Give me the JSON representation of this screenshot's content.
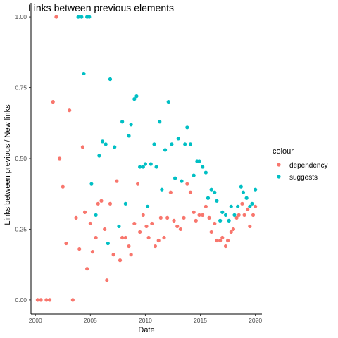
{
  "chart_data": {
    "type": "scatter",
    "title": "Links between previous elements",
    "xlabel": "Date",
    "ylabel": "Links between previous / New links",
    "xlim": [
      1999.6,
      2020.6
    ],
    "ylim": [
      -0.05,
      1.05
    ],
    "x_ticks": [
      2000,
      2005,
      2010,
      2015,
      2020
    ],
    "x_tick_labels": [
      "2000",
      "2005",
      "2010",
      "2015",
      "2020"
    ],
    "y_ticks": [
      0.0,
      0.25,
      0.5,
      0.75,
      1.0
    ],
    "y_tick_labels": [
      "0.00",
      "0.25",
      "0.50",
      "0.75",
      "1.00"
    ],
    "grid": false,
    "legend": {
      "title": "colour",
      "position": "right"
    },
    "series": [
      {
        "name": "dependency",
        "color": "#F8766D",
        "points": [
          [
            2000.2,
            0.0
          ],
          [
            2000.5,
            0.0
          ],
          [
            2001.0,
            0.0
          ],
          [
            2001.3,
            0.0
          ],
          [
            2001.6,
            0.7
          ],
          [
            2001.9,
            1.0
          ],
          [
            2002.2,
            0.5
          ],
          [
            2002.5,
            0.4
          ],
          [
            2002.8,
            0.2
          ],
          [
            2003.1,
            0.67
          ],
          [
            2003.4,
            0.0
          ],
          [
            2003.7,
            0.29
          ],
          [
            2004.0,
            0.18
          ],
          [
            2004.3,
            0.54
          ],
          [
            2004.5,
            0.31
          ],
          [
            2004.7,
            0.11
          ],
          [
            2005.0,
            0.27
          ],
          [
            2005.2,
            0.17
          ],
          [
            2005.5,
            0.22
          ],
          [
            2005.7,
            0.34
          ],
          [
            2006.0,
            0.35
          ],
          [
            2006.3,
            0.25
          ],
          [
            2006.5,
            0.07
          ],
          [
            2006.8,
            0.34
          ],
          [
            2007.1,
            0.16
          ],
          [
            2007.4,
            0.42
          ],
          [
            2007.7,
            0.14
          ],
          [
            2007.9,
            0.22
          ],
          [
            2008.2,
            0.22
          ],
          [
            2008.5,
            0.19
          ],
          [
            2008.7,
            0.16
          ],
          [
            2009.0,
            0.27
          ],
          [
            2009.3,
            0.41
          ],
          [
            2009.5,
            0.24
          ],
          [
            2009.8,
            0.3
          ],
          [
            2010.1,
            0.26
          ],
          [
            2010.3,
            0.22
          ],
          [
            2010.6,
            0.27
          ],
          [
            2010.9,
            0.19
          ],
          [
            2011.2,
            0.21
          ],
          [
            2011.4,
            0.29
          ],
          [
            2011.7,
            0.22
          ],
          [
            2012.0,
            0.29
          ],
          [
            2012.3,
            0.38
          ],
          [
            2012.6,
            0.28
          ],
          [
            2012.9,
            0.26
          ],
          [
            2013.2,
            0.25
          ],
          [
            2013.5,
            0.29
          ],
          [
            2013.8,
            0.41
          ],
          [
            2014.1,
            0.38
          ],
          [
            2014.4,
            0.31
          ],
          [
            2014.6,
            0.28
          ],
          [
            2014.9,
            0.3
          ],
          [
            2015.2,
            0.3
          ],
          [
            2015.5,
            0.33
          ],
          [
            2015.8,
            0.29
          ],
          [
            2016.0,
            0.24
          ],
          [
            2016.3,
            0.27
          ],
          [
            2016.5,
            0.21
          ],
          [
            2016.8,
            0.21
          ],
          [
            2017.0,
            0.22
          ],
          [
            2017.3,
            0.19
          ],
          [
            2017.5,
            0.21
          ],
          [
            2017.8,
            0.24
          ],
          [
            2018.0,
            0.25
          ],
          [
            2018.3,
            0.29
          ],
          [
            2018.5,
            0.3
          ],
          [
            2018.8,
            0.34
          ],
          [
            2019.0,
            0.3
          ],
          [
            2019.3,
            0.32
          ],
          [
            2019.5,
            0.26
          ],
          [
            2019.8,
            0.3
          ],
          [
            2020.0,
            0.33
          ]
        ]
      },
      {
        "name": "suggests",
        "color": "#00BFC4",
        "points": [
          [
            2003.9,
            1.0
          ],
          [
            2004.2,
            1.0
          ],
          [
            2004.7,
            1.0
          ],
          [
            2004.9,
            1.0
          ],
          [
            2004.4,
            0.8
          ],
          [
            2005.1,
            0.41
          ],
          [
            2005.5,
            0.3
          ],
          [
            2005.8,
            0.51
          ],
          [
            2006.1,
            0.56
          ],
          [
            2006.4,
            0.55
          ],
          [
            2006.6,
            0.2
          ],
          [
            2006.8,
            0.78
          ],
          [
            2007.2,
            0.54
          ],
          [
            2007.6,
            0.26
          ],
          [
            2007.9,
            0.63
          ],
          [
            2008.2,
            0.34
          ],
          [
            2008.5,
            0.58
          ],
          [
            2008.7,
            0.62
          ],
          [
            2009.0,
            0.71
          ],
          [
            2009.2,
            0.72
          ],
          [
            2009.5,
            0.47
          ],
          [
            2009.8,
            0.47
          ],
          [
            2010.0,
            0.48
          ],
          [
            2010.2,
            0.33
          ],
          [
            2010.5,
            0.48
          ],
          [
            2010.8,
            0.55
          ],
          [
            2011.0,
            0.47
          ],
          [
            2011.3,
            0.63
          ],
          [
            2011.5,
            0.39
          ],
          [
            2011.8,
            0.53
          ],
          [
            2012.1,
            0.7
          ],
          [
            2012.4,
            0.55
          ],
          [
            2012.7,
            0.43
          ],
          [
            2013.0,
            0.57
          ],
          [
            2013.3,
            0.42
          ],
          [
            2013.6,
            0.55
          ],
          [
            2013.8,
            0.61
          ],
          [
            2014.1,
            0.55
          ],
          [
            2014.4,
            0.44
          ],
          [
            2014.7,
            0.49
          ],
          [
            2014.9,
            0.49
          ],
          [
            2015.2,
            0.47
          ],
          [
            2015.5,
            0.45
          ],
          [
            2015.7,
            0.36
          ],
          [
            2016.0,
            0.39
          ],
          [
            2016.3,
            0.38
          ],
          [
            2016.5,
            0.35
          ],
          [
            2016.8,
            0.28
          ],
          [
            2017.0,
            0.31
          ],
          [
            2017.3,
            0.3
          ],
          [
            2017.6,
            0.28
          ],
          [
            2017.8,
            0.33
          ],
          [
            2018.1,
            0.3
          ],
          [
            2018.4,
            0.33
          ],
          [
            2018.7,
            0.4
          ],
          [
            2018.9,
            0.38
          ],
          [
            2019.2,
            0.36
          ],
          [
            2019.5,
            0.33
          ],
          [
            2019.7,
            0.34
          ],
          [
            2020.0,
            0.39
          ]
        ]
      }
    ]
  }
}
